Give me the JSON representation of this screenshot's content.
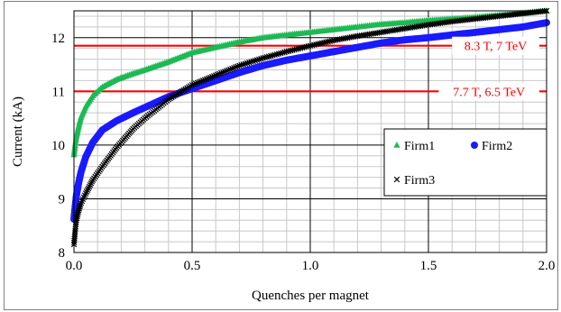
{
  "chart_data": {
    "type": "scatter",
    "title": "",
    "xlabel": "Quenches per magnet",
    "ylabel": "Current (kA)",
    "xlim": [
      0.0,
      2.0
    ],
    "ylim": [
      8,
      12.5
    ],
    "x_major_ticks": [
      0.0,
      0.5,
      1.0,
      1.5,
      2.0
    ],
    "x_tick_labels": [
      "0.0",
      "0.5",
      "1.0",
      "1.5",
      "2.0"
    ],
    "y_major_ticks": [
      8,
      9,
      10,
      11,
      12
    ],
    "y_tick_labels": [
      "8",
      "9",
      "10",
      "11",
      "12"
    ],
    "x_minor_step": 0.1,
    "y_minor_step": 0.2,
    "grid": true,
    "legend_position": "lower-right",
    "reference_lines": [
      {
        "label": "8.3 T, 7 TeV",
        "y": 11.85,
        "color": "#ff0000"
      },
      {
        "label": "7.7 T, 6.5 TeV",
        "y": 11.0,
        "color": "#ff0000"
      }
    ],
    "series": [
      {
        "name": "Firm1",
        "marker": "triangle",
        "color": "#1db954",
        "x": [
          0.0,
          0.005,
          0.01,
          0.02,
          0.03,
          0.05,
          0.08,
          0.12,
          0.18,
          0.25,
          0.3,
          0.4,
          0.5,
          0.6,
          0.7,
          0.8,
          0.9,
          1.0,
          1.1,
          1.2,
          1.3,
          1.4,
          1.5,
          1.6,
          1.7,
          1.8,
          1.9,
          2.0
        ],
        "y": [
          9.82,
          10.0,
          10.15,
          10.35,
          10.52,
          10.72,
          10.92,
          11.08,
          11.22,
          11.33,
          11.4,
          11.55,
          11.72,
          11.82,
          11.92,
          12.0,
          12.05,
          12.1,
          12.15,
          12.2,
          12.25,
          12.28,
          12.32,
          12.35,
          12.38,
          12.42,
          12.46,
          12.5
        ]
      },
      {
        "name": "Firm2",
        "marker": "circle",
        "color": "#1a1aff",
        "x": [
          0.0,
          0.005,
          0.01,
          0.02,
          0.03,
          0.05,
          0.08,
          0.12,
          0.18,
          0.25,
          0.3,
          0.4,
          0.5,
          0.6,
          0.7,
          0.8,
          0.9,
          1.0,
          1.1,
          1.2,
          1.3,
          1.4,
          1.5,
          1.6,
          1.7,
          1.8,
          1.9,
          2.0
        ],
        "y": [
          8.62,
          8.85,
          9.05,
          9.3,
          9.5,
          9.78,
          10.05,
          10.28,
          10.45,
          10.6,
          10.7,
          10.9,
          11.05,
          11.2,
          11.35,
          11.48,
          11.58,
          11.66,
          11.74,
          11.82,
          11.9,
          11.96,
          12.0,
          12.05,
          12.1,
          12.15,
          12.2,
          12.28
        ]
      },
      {
        "name": "Firm3",
        "marker": "cross",
        "color": "#000000",
        "x": [
          0.0,
          0.005,
          0.01,
          0.02,
          0.03,
          0.05,
          0.08,
          0.12,
          0.18,
          0.25,
          0.3,
          0.4,
          0.5,
          0.6,
          0.7,
          0.8,
          0.9,
          1.0,
          1.1,
          1.2,
          1.3,
          1.4,
          1.5,
          1.6,
          1.7,
          1.8,
          1.9,
          2.0
        ],
        "y": [
          8.15,
          8.4,
          8.6,
          8.78,
          8.92,
          9.1,
          9.35,
          9.6,
          9.95,
          10.3,
          10.5,
          10.85,
          11.12,
          11.3,
          11.48,
          11.62,
          11.74,
          11.85,
          11.95,
          12.03,
          12.1,
          12.17,
          12.24,
          12.3,
          12.35,
          12.4,
          12.45,
          12.5
        ]
      }
    ]
  }
}
